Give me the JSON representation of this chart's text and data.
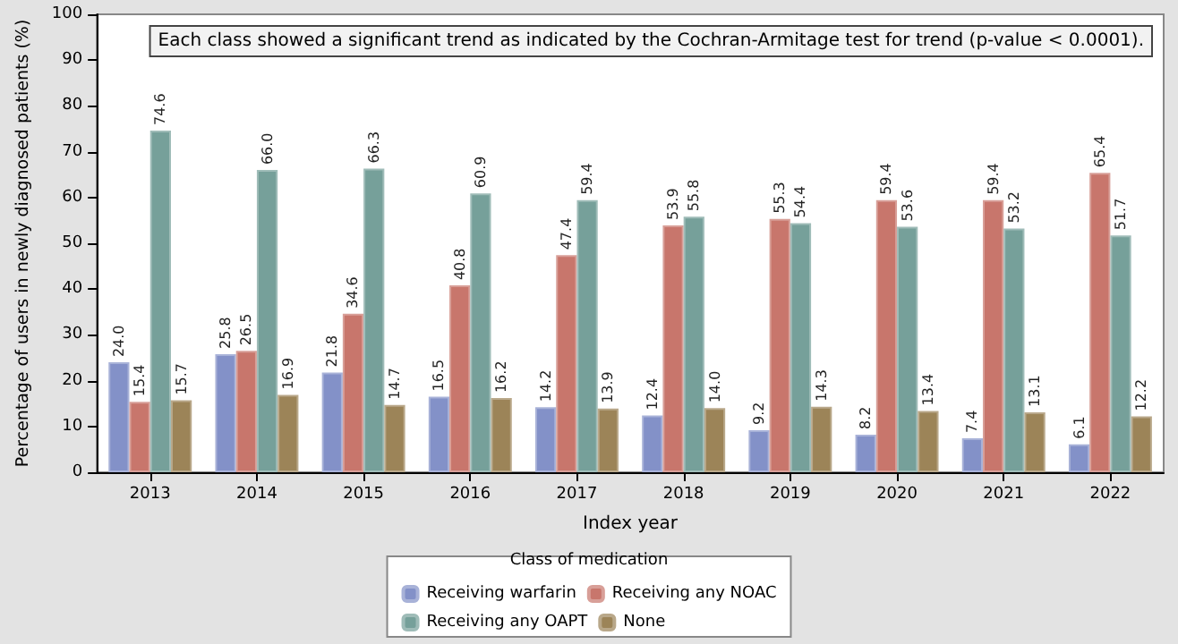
{
  "chart_data": {
    "type": "bar",
    "xlabel": "Index year",
    "ylabel": "Percentage of users in newly diagnosed patients (%)",
    "legend_title": "Class of medication",
    "annotations": [
      "Each class showed a significant trend as indicated by the Cochran-Armitage test for trend (p-value < 0.0001)."
    ],
    "categories": [
      "2013",
      "2014",
      "2015",
      "2016",
      "2017",
      "2018",
      "2019",
      "2020",
      "2021",
      "2022"
    ],
    "series": [
      {
        "name": "Receiving warfarin",
        "color": "#8391c8",
        "values": [
          24.0,
          25.8,
          21.8,
          16.5,
          14.2,
          12.4,
          9.2,
          8.2,
          7.4,
          6.1
        ],
        "value_labels": [
          "24.0",
          "25.8",
          "21.8",
          "16.5",
          "14.2",
          "12.4",
          "9.2",
          "8.2",
          "7.4",
          "6.1"
        ]
      },
      {
        "name": "Receiving any NOAC",
        "color": "#c8766c",
        "values": [
          15.4,
          26.5,
          34.6,
          40.8,
          47.4,
          53.9,
          55.3,
          59.4,
          59.4,
          65.4
        ],
        "value_labels": [
          "15.4",
          "26.5",
          "34.6",
          "40.8",
          "47.4",
          "53.9",
          "55.3",
          "59.4",
          "59.4",
          "65.4"
        ]
      },
      {
        "name": "Receiving any OAPT",
        "color": "#76a09a",
        "values": [
          74.6,
          66.0,
          66.3,
          60.9,
          59.4,
          55.8,
          54.4,
          53.6,
          53.2,
          51.7
        ],
        "value_labels": [
          "74.6",
          "66.0",
          "66.3",
          "60.9",
          "59.4",
          "55.8",
          "54.4",
          "53.6",
          "53.2",
          "51.7"
        ]
      },
      {
        "name": "None",
        "color": "#9c8458",
        "values": [
          15.7,
          16.9,
          14.7,
          16.2,
          13.9,
          14.0,
          14.3,
          13.4,
          13.1,
          12.2
        ],
        "value_labels": [
          "15.7",
          "16.9",
          "14.7",
          "16.2",
          "13.9",
          "14.0",
          "14.3",
          "13.4",
          "13.1",
          "12.2"
        ]
      }
    ],
    "ylim": [
      0,
      100
    ],
    "yticks": [
      0,
      10,
      20,
      30,
      40,
      50,
      60,
      70,
      80,
      90,
      100
    ],
    "grid": false,
    "legend": "bottom"
  }
}
